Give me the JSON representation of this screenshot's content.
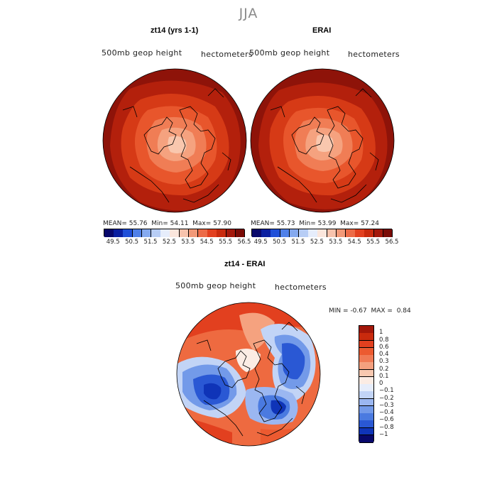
{
  "season": "JJA",
  "panels": [
    {
      "title": "zt14 (yrs 1-1)",
      "variable": "500mb geop height",
      "units": "hectometers",
      "stats": {
        "mean_label": "MEAN=",
        "mean": "55.76",
        "min_label": "Min=",
        "min": "54.11",
        "max_label": "Max=",
        "max": "57.90"
      }
    },
    {
      "title": "ERAI",
      "variable": "500mb geop height",
      "units": "hectometers",
      "stats": {
        "mean_label": "MEAN=",
        "mean": "55.73",
        "min_label": "Min=",
        "min": "53.99",
        "max_label": "Max=",
        "max": "57.24"
      }
    }
  ],
  "abs_colorbar": {
    "tick_labels": [
      "49.5",
      "50.5",
      "51.5",
      "52.5",
      "53.5",
      "54.5",
      "55.5",
      "56.5"
    ],
    "colors": [
      "#08086b",
      "#0a1fa0",
      "#1f4fd8",
      "#4f80e8",
      "#84a9ef",
      "#b7cdf5",
      "#e6edfb",
      "#fbe6dc",
      "#f7c3ad",
      "#f29978",
      "#ec6b47",
      "#e2401f",
      "#c92a0d",
      "#a3170a",
      "#7a0a05"
    ]
  },
  "diff_panel": {
    "title": "zt14 - ERAI",
    "variable": "500mb geop height",
    "units": "hectometers",
    "min_label": "MIN =",
    "min": "-0.67",
    "max_label": "MAX =",
    "max": "0.84"
  },
  "diff_colorbar": {
    "tick_labels": [
      "1",
      "0.8",
      "0.6",
      "0.4",
      "0.3",
      "0.2",
      "0.1",
      "0",
      "−0.1",
      "−0.2",
      "−0.3",
      "−0.4",
      "−0.6",
      "−0.8",
      "−1"
    ],
    "colors": [
      "#a3170a",
      "#c92a0d",
      "#e2401f",
      "#ec5a30",
      "#f07a55",
      "#f4a07f",
      "#f8c8b0",
      "#fbece4",
      "#e6edfb",
      "#c2d4f6",
      "#9bb7f1",
      "#739ae9",
      "#4a7ae0",
      "#2a58d4",
      "#0f34b8",
      "#08086b"
    ]
  },
  "colors": {
    "ocean_abs": "#c92a0d",
    "land_contours": "#000000",
    "season_title": "#8a8a8a"
  }
}
